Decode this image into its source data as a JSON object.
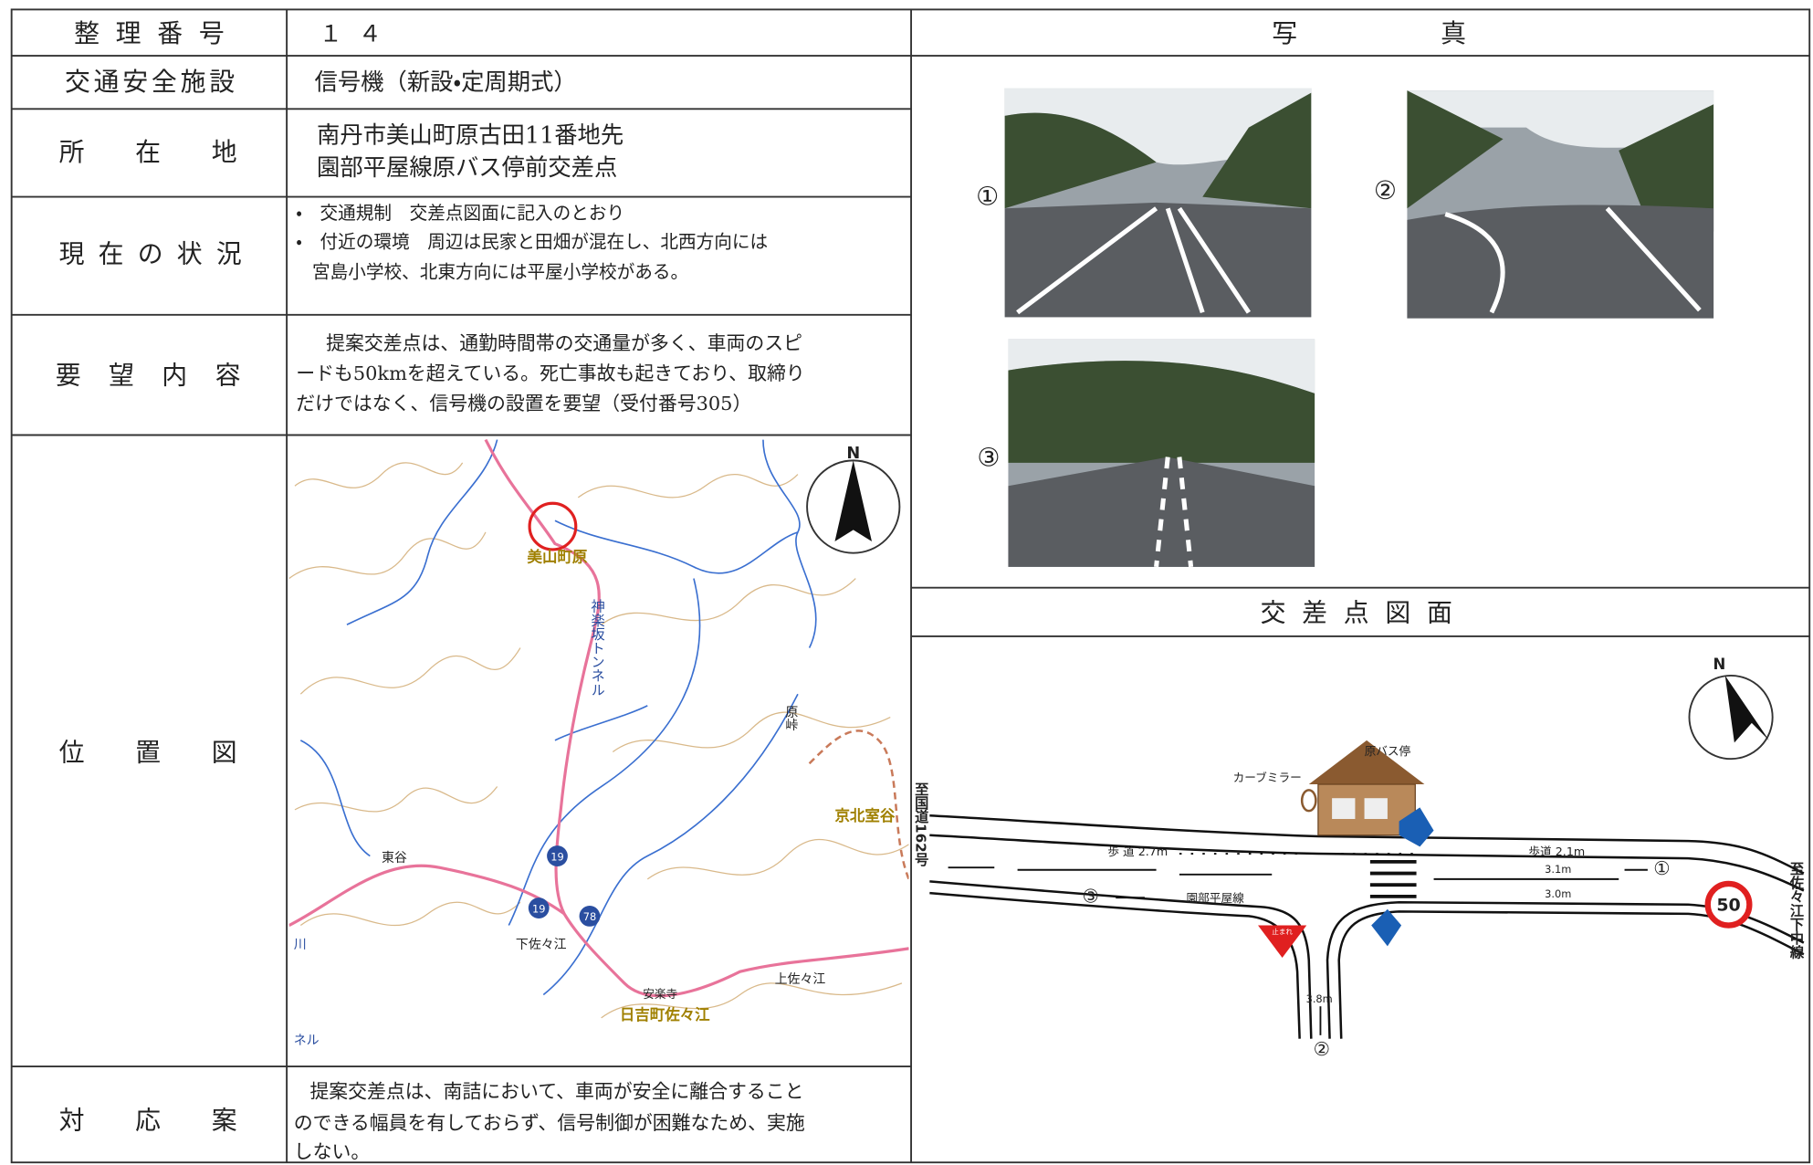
{
  "form": {
    "number": {
      "label": "整理番号",
      "value": "１４"
    },
    "facility": {
      "label": "交通安全施設",
      "value": "信号機（新設・定周期式）"
    },
    "location": {
      "label": "所在地",
      "lines": [
        "南丹市美山町原古田11番地先",
        "園部平屋線原バス停前交差点"
      ]
    },
    "status": {
      "label": "現在の状況",
      "lines": [
        "・　交通規制　交差点図面に記入のとおり",
        "・　付近の環境　周辺は民家と田畑が混在し、北西方向には",
        "宮島小学校、北東方向には平屋小学校がある。"
      ]
    },
    "request": {
      "label": "要望内容",
      "lines": [
        "提案交差点は、通勤時間帯の交通量が多く、車両のスピ",
        "ードも50kmを超えている。死亡事故も起きており、取締り",
        "だけではなく、信号機の設置を要望（受付番号305）"
      ]
    },
    "map": {
      "label": "位置図",
      "north": "N",
      "places": [
        "美山町原",
        "神楽坂トンネル",
        "原峠",
        "京北室谷",
        "東谷",
        "下佐々江",
        "安楽寺",
        "日吉町佐々江",
        "上佐々江",
        "川",
        "ネル"
      ],
      "route_numbers": [
        "19",
        "19",
        "78"
      ]
    },
    "response": {
      "label": "対応案",
      "lines": [
        "提案交差点は、南詰において、車両が安全に離合すること",
        "のできる幅員を有しておらず、信号制御が困難なため、実施",
        "しない。"
      ]
    }
  },
  "photos": {
    "title": [
      "写",
      "真"
    ],
    "items": [
      "①",
      "②",
      "③"
    ]
  },
  "diagram": {
    "title": "交差点図面",
    "north": "N",
    "labels": [
      "原バス停",
      "カーブミラー",
      "至国道162号",
      "至佐々江下中線",
      "歩 道 2.7m",
      "歩道 2.1m",
      "3.1m",
      "3.0m",
      "園部平屋線",
      "3.8m",
      "①",
      "②",
      "③",
      "50",
      "止まれ"
    ]
  }
}
